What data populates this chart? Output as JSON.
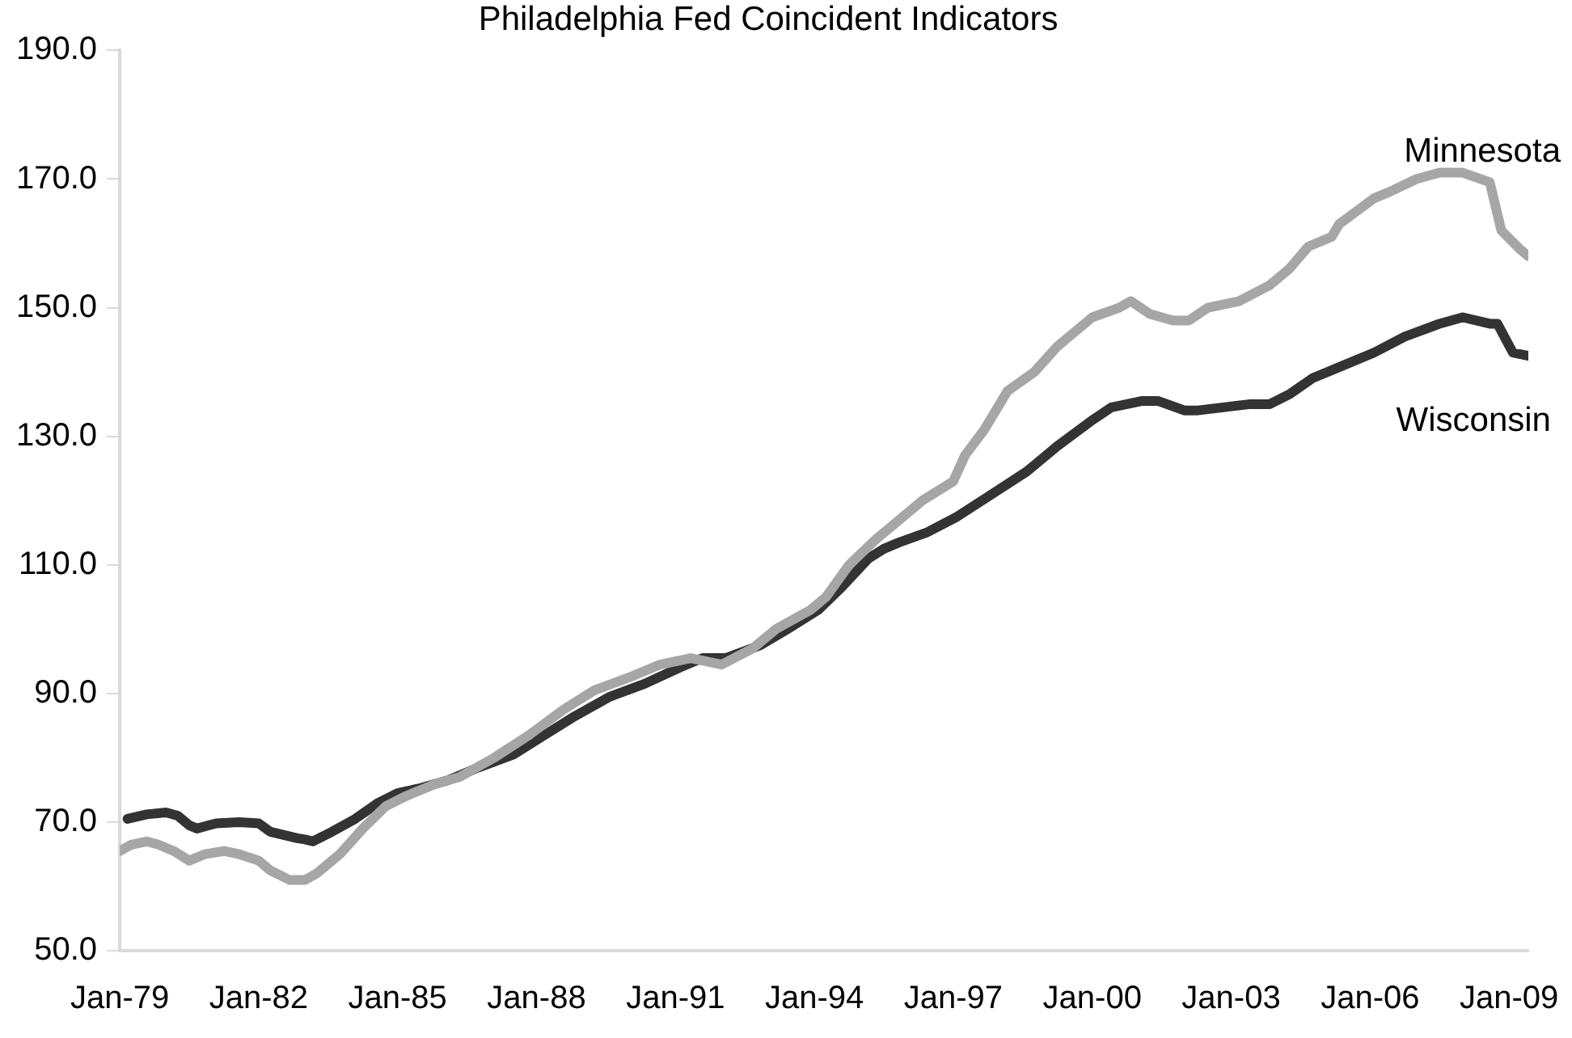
{
  "chart_data": {
    "type": "line",
    "title": "Philadelphia Fed Coincident Indicators",
    "xlim": [
      "1979-01",
      "2009-06"
    ],
    "xticks": [
      {
        "value": "1979-01",
        "label": "Jan-79"
      },
      {
        "value": "1982-01",
        "label": "Jan-82"
      },
      {
        "value": "1985-01",
        "label": "Jan-85"
      },
      {
        "value": "1988-01",
        "label": "Jan-88"
      },
      {
        "value": "1991-01",
        "label": "Jan-91"
      },
      {
        "value": "1994-01",
        "label": "Jan-94"
      },
      {
        "value": "1997-01",
        "label": "Jan-97"
      },
      {
        "value": "2000-01",
        "label": "Jan-00"
      },
      {
        "value": "2003-01",
        "label": "Jan-03"
      },
      {
        "value": "2006-01",
        "label": "Jan-06"
      },
      {
        "value": "2009-01",
        "label": "Jan-09"
      }
    ],
    "ylim": [
      50,
      190
    ],
    "yticks": [
      {
        "value": 50,
        "label": "50.0"
      },
      {
        "value": 70,
        "label": "70.0"
      },
      {
        "value": 90,
        "label": "90.0"
      },
      {
        "value": 110,
        "label": "110.0"
      },
      {
        "value": 130,
        "label": "130.0"
      },
      {
        "value": 150,
        "label": "150.0"
      },
      {
        "value": 170,
        "label": "170.0"
      },
      {
        "value": 190,
        "label": "190.0"
      }
    ],
    "grid": false,
    "legend": false,
    "marker": "none",
    "line_style": "solid",
    "series": [
      {
        "name": "Minnesota",
        "color": "#a6a6a6",
        "x": [
          "1979-01",
          "1979-04",
          "1979-08",
          "1979-11",
          "1980-03",
          "1980-07",
          "1980-11",
          "1981-04",
          "1981-08",
          "1982-01",
          "1982-04",
          "1982-09",
          "1983-01",
          "1983-04",
          "1983-10",
          "1984-04",
          "1984-10",
          "1985-03",
          "1985-11",
          "1986-05",
          "1987-02",
          "1987-11",
          "1988-08",
          "1989-04",
          "1990-01",
          "1990-09",
          "1991-05",
          "1992-01",
          "1992-09",
          "1993-03",
          "1993-12",
          "1994-04",
          "1994-10",
          "1995-05",
          "1995-11",
          "1996-05",
          "1997-01",
          "1997-04",
          "1997-09",
          "1998-03",
          "1998-10",
          "1999-04",
          "2000-01",
          "2000-08",
          "2000-11",
          "2001-04",
          "2001-10",
          "2002-02",
          "2002-07",
          "2003-03",
          "2003-11",
          "2004-04",
          "2004-09",
          "2005-03",
          "2005-05",
          "2006-02",
          "2006-06",
          "2007-01",
          "2007-07",
          "2008-01",
          "2008-08",
          "2008-11",
          "2009-04",
          "2009-06"
        ],
        "values": [
          65.5,
          66.5,
          67,
          66.5,
          65.5,
          64,
          65,
          65.5,
          65,
          64,
          62.5,
          61,
          61,
          62,
          65,
          69,
          72.5,
          74,
          76,
          77,
          80,
          83.5,
          87.5,
          90.5,
          92.5,
          94.5,
          95.5,
          94.5,
          97,
          100,
          103,
          105,
          110,
          114,
          117,
          120,
          123,
          127,
          131,
          137,
          140,
          144,
          148.5,
          150,
          151,
          149,
          148,
          148,
          150,
          151,
          153.5,
          156,
          159.5,
          161,
          163,
          167,
          168,
          170,
          171,
          171,
          169.5,
          162,
          159,
          158
        ]
      },
      {
        "name": "Wisconsin",
        "color": "#333333",
        "x": [
          "1979-03",
          "1979-08",
          "1980-01",
          "1980-04",
          "1980-07",
          "1980-09",
          "1981-02",
          "1981-08",
          "1982-01",
          "1982-04",
          "1982-11",
          "1983-01",
          "1983-03",
          "1983-08",
          "1984-02",
          "1984-08",
          "1985-01",
          "1985-07",
          "1986-02",
          "1986-10",
          "1987-07",
          "1988-03",
          "1988-11",
          "1989-08",
          "1990-05",
          "1991-02",
          "1991-08",
          "1992-02",
          "1992-11",
          "1993-06",
          "1994-02",
          "1994-08",
          "1995-03",
          "1995-07",
          "1995-11",
          "1996-06",
          "1997-02",
          "1997-11",
          "1998-08",
          "1999-04",
          "2000-01",
          "2000-06",
          "2001-02",
          "2001-06",
          "2002-01",
          "2002-04",
          "2002-11",
          "2003-06",
          "2003-11",
          "2004-04",
          "2004-10",
          "2005-06",
          "2006-02",
          "2006-10",
          "2007-07",
          "2008-01",
          "2008-08",
          "2008-10",
          "2009-02",
          "2009-06"
        ],
        "values": [
          70.5,
          71.2,
          71.5,
          71,
          69.5,
          69,
          69.8,
          70,
          69.8,
          68.5,
          67.5,
          67.3,
          67,
          68.5,
          70.5,
          73,
          74.5,
          75.3,
          76.5,
          78.5,
          80.5,
          83.5,
          86.5,
          89.5,
          91.5,
          94,
          95.5,
          95.5,
          97.5,
          100,
          103,
          106.5,
          111,
          112.5,
          113.5,
          115,
          117.5,
          121,
          124.5,
          128.5,
          132.5,
          134.5,
          135.5,
          135.5,
          134,
          134,
          134.5,
          135,
          135,
          136.5,
          139,
          141,
          143,
          145.5,
          147.5,
          148.5,
          147.5,
          147.5,
          143,
          142.5
        ]
      }
    ]
  }
}
